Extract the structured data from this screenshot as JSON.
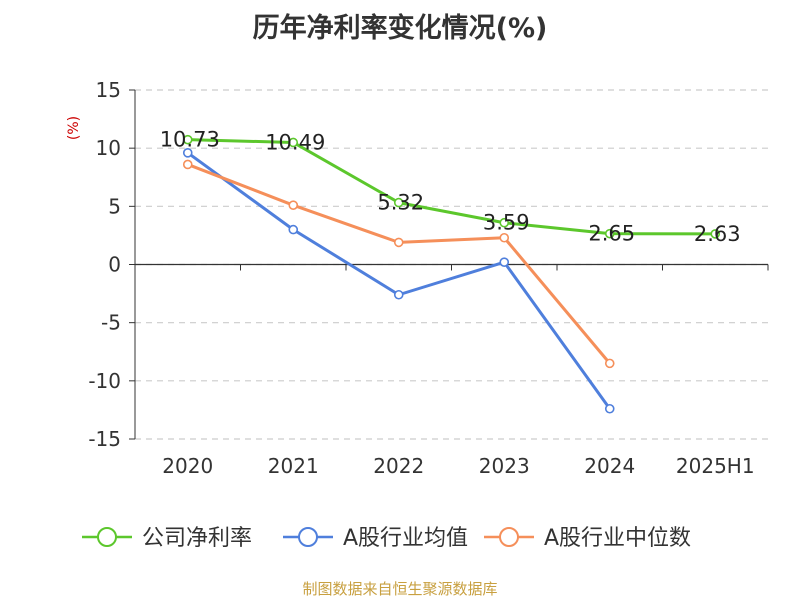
{
  "title": "历年净利率变化情况(%)",
  "source": "制图数据来自恒生聚源数据库",
  "chart_data": {
    "type": "line",
    "title": "历年净利率变化情况(%)",
    "ylabel": "(%)",
    "xlabel": "",
    "categories": [
      "2020",
      "2021",
      "2022",
      "2023",
      "2024",
      "2025H1"
    ],
    "ylim": [
      -15,
      15
    ],
    "yticks": [
      15,
      10,
      5,
      0,
      -5,
      -10,
      -15
    ],
    "grid": true,
    "legend_position": "bottom",
    "series": [
      {
        "name": "公司净利率",
        "color": "#5cc72c",
        "values": [
          10.73,
          10.49,
          5.32,
          3.59,
          2.65,
          2.63
        ],
        "labels": [
          "10.73",
          "10.49",
          "5.32",
          "3.59",
          "2.65",
          "2.63"
        ]
      },
      {
        "name": "A股行业均值",
        "color": "#4f7fdc",
        "values": [
          9.6,
          3.0,
          -2.6,
          0.2,
          -12.4,
          null
        ]
      },
      {
        "name": "A股行业中位数",
        "color": "#f58f5a",
        "values": [
          8.6,
          5.1,
          1.9,
          2.3,
          -8.5,
          null
        ]
      }
    ]
  }
}
